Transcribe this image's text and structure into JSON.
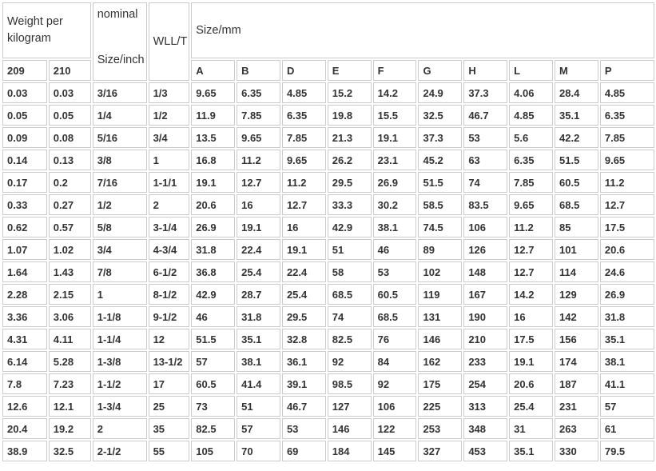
{
  "colors": {
    "background": "#ffffff",
    "border": "#cbcbcb",
    "text": "#333333"
  },
  "table": {
    "header": {
      "weight_label": "Weight per kilogram",
      "col_209": "209",
      "col_210": "210",
      "nominal_label": "nominal",
      "size_inch_label": "Size/inch",
      "wll_label": "WLL/T",
      "size_mm_label": "Size/mm",
      "mm_columns": [
        "A",
        "B",
        "D",
        "E",
        "F",
        "G",
        "H",
        "L",
        "M",
        "P"
      ]
    },
    "rows": [
      [
        "0.03",
        "0.03",
        "3/16",
        "1/3",
        "9.65",
        "6.35",
        "4.85",
        "15.2",
        "14.2",
        "24.9",
        "37.3",
        "4.06",
        "28.4",
        "4.85"
      ],
      [
        "0.05",
        "0.05",
        "1/4",
        "1/2",
        "11.9",
        "7.85",
        "6.35",
        "19.8",
        "15.5",
        "32.5",
        "46.7",
        "4.85",
        "35.1",
        "6.35"
      ],
      [
        "0.09",
        "0.08",
        "5/16",
        "3/4",
        "13.5",
        "9.65",
        "7.85",
        "21.3",
        "19.1",
        "37.3",
        "53",
        "5.6",
        "42.2",
        "7.85"
      ],
      [
        "0.14",
        "0.13",
        "3/8",
        "1",
        "16.8",
        "11.2",
        "9.65",
        "26.2",
        "23.1",
        "45.2",
        "63",
        "6.35",
        "51.5",
        "9.65"
      ],
      [
        "0.17",
        "0.2",
        "7/16",
        "1-1/1",
        "19.1",
        "12.7",
        "11.2",
        "29.5",
        "26.9",
        "51.5",
        "74",
        "7.85",
        "60.5",
        "11.2"
      ],
      [
        "0.33",
        "0.27",
        "1/2",
        "2",
        "20.6",
        "16",
        "12.7",
        "33.3",
        "30.2",
        "58.5",
        "83.5",
        "9.65",
        "68.5",
        "12.7"
      ],
      [
        "0.62",
        "0.57",
        "5/8",
        "3-1/4",
        "26.9",
        "19.1",
        "16",
        "42.9",
        "38.1",
        "74.5",
        "106",
        "11.2",
        "85",
        "17.5"
      ],
      [
        "1.07",
        "1.02",
        "3/4",
        "4-3/4",
        "31.8",
        "22.4",
        "19.1",
        "51",
        "46",
        "89",
        "126",
        "12.7",
        "101",
        "20.6"
      ],
      [
        "1.64",
        "1.43",
        "7/8",
        "6-1/2",
        "36.8",
        "25.4",
        "22.4",
        "58",
        "53",
        "102",
        "148",
        "12.7",
        "114",
        "24.6"
      ],
      [
        "2.28",
        "2.15",
        "1",
        "8-1/2",
        "42.9",
        "28.7",
        "25.4",
        "68.5",
        "60.5",
        "119",
        "167",
        "14.2",
        "129",
        "26.9"
      ],
      [
        "3.36",
        "3.06",
        "1-1/8",
        "9-1/2",
        "46",
        "31.8",
        "29.5",
        "74",
        "68.5",
        "131",
        "190",
        "16",
        "142",
        "31.8"
      ],
      [
        "4.31",
        "4.11",
        "1-1/4",
        "12",
        "51.5",
        "35.1",
        "32.8",
        "82.5",
        "76",
        "146",
        "210",
        "17.5",
        "156",
        "35.1"
      ],
      [
        "6.14",
        "5.28",
        "1-3/8",
        "13-1/2",
        "57",
        "38.1",
        "36.1",
        "92",
        "84",
        "162",
        "233",
        "19.1",
        "174",
        "38.1"
      ],
      [
        "7.8",
        "7.23",
        "1-1/2",
        "17",
        "60.5",
        "41.4",
        "39.1",
        "98.5",
        "92",
        "175",
        "254",
        "20.6",
        "187",
        "41.1"
      ],
      [
        "12.6",
        "12.1",
        "1-3/4",
        "25",
        "73",
        "51",
        "46.7",
        "127",
        "106",
        "225",
        "313",
        "25.4",
        "231",
        "57"
      ],
      [
        "20.4",
        "19.2",
        "2",
        "35",
        "82.5",
        "57",
        "53",
        "146",
        "122",
        "253",
        "348",
        "31",
        "263",
        "61"
      ],
      [
        "38.9",
        "32.5",
        "2-1/2",
        "55",
        "105",
        "70",
        "69",
        "184",
        "145",
        "327",
        "453",
        "35.1",
        "330",
        "79.5"
      ]
    ]
  }
}
